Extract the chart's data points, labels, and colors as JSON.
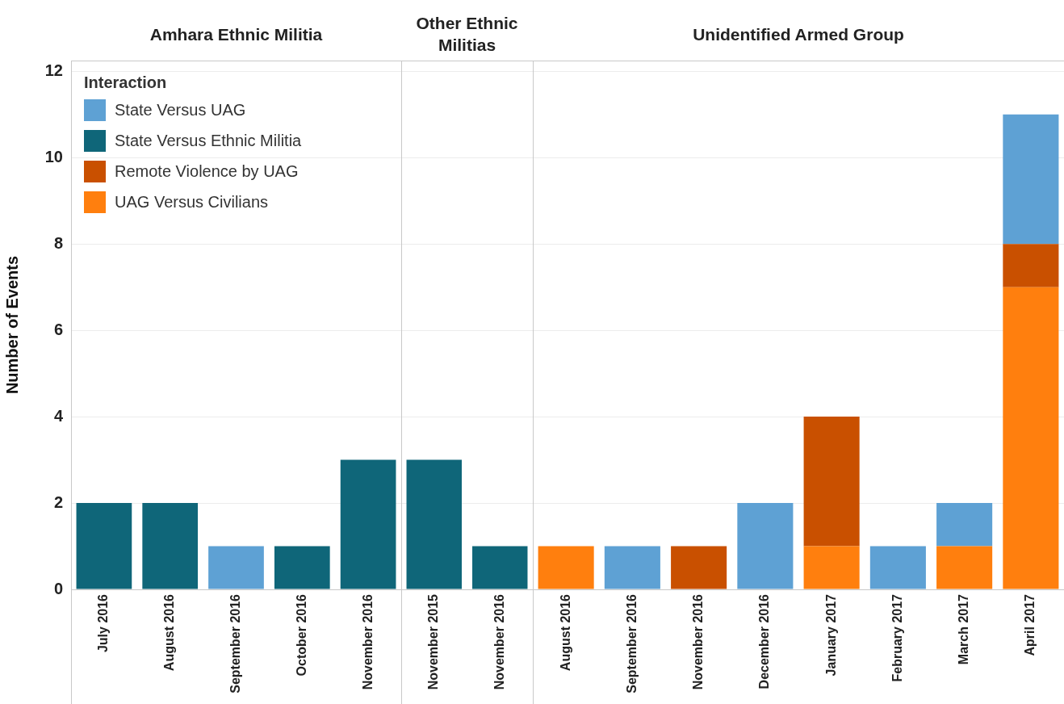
{
  "chart_data": [
    {
      "type": "bar",
      "title": "Amhara Ethnic Militia",
      "ylabel": "Number of Events",
      "stacked": true,
      "grid": "y",
      "legend": "top left",
      "legend_title": "Interaction",
      "ylim": [
        0,
        12.25
      ],
      "yticks": [
        0,
        2,
        4,
        6,
        8,
        10,
        12
      ],
      "categories": [
        "July 2016",
        "August 2016",
        "September 2016",
        "October 2016",
        "November 2016"
      ],
      "series": [
        {
          "name": "State Versus UAG",
          "color": "#5ea1d4",
          "values": [
            null,
            null,
            1,
            null,
            null
          ]
        },
        {
          "name": "State Versus Ethnic Militia",
          "color": "#0f6679",
          "values": [
            2,
            2,
            null,
            1,
            3
          ]
        },
        {
          "name": "Remote Violence by UAG",
          "color": "#c95000",
          "values": [
            null,
            null,
            null,
            null,
            null
          ]
        },
        {
          "name": "UAG Versus Civilians",
          "color": "#ff7f0e",
          "values": [
            null,
            null,
            null,
            null,
            null
          ]
        }
      ]
    },
    {
      "type": "bar",
      "title": "Other Ethnic Militias",
      "stacked": true,
      "grid": "y",
      "tick_labels": "x",
      "ylim": [
        0,
        12.25
      ],
      "yticks": [
        0,
        2,
        4,
        6,
        8,
        10,
        12
      ],
      "categories": [
        "November 2015",
        "November 2016"
      ],
      "series": [
        {
          "color": "#0f6679",
          "values": [
            3,
            1
          ]
        }
      ]
    },
    {
      "type": "bar",
      "title": "Unidentified Armed Group",
      "stacked": true,
      "grid": "y",
      "tick_labels": "x",
      "ylim": [
        0,
        12.25
      ],
      "yticks": [
        0,
        2,
        4,
        6,
        8,
        10,
        12
      ],
      "categories": [
        "August 2016",
        "September 2016",
        "November 2016",
        "December 2016",
        "January 2017",
        "February 2017",
        "March 2017",
        "April 2017"
      ],
      "series": [
        {
          "color": "#ff7f0e",
          "values": [
            1,
            null,
            null,
            null,
            1,
            null,
            1,
            7
          ]
        },
        {
          "color": "#c95000",
          "values": [
            null,
            null,
            1,
            null,
            3,
            null,
            null,
            1
          ]
        },
        {
          "color": "#5ea1d4",
          "values": [
            null,
            1,
            null,
            2,
            null,
            1,
            1,
            3
          ]
        }
      ]
    }
  ]
}
